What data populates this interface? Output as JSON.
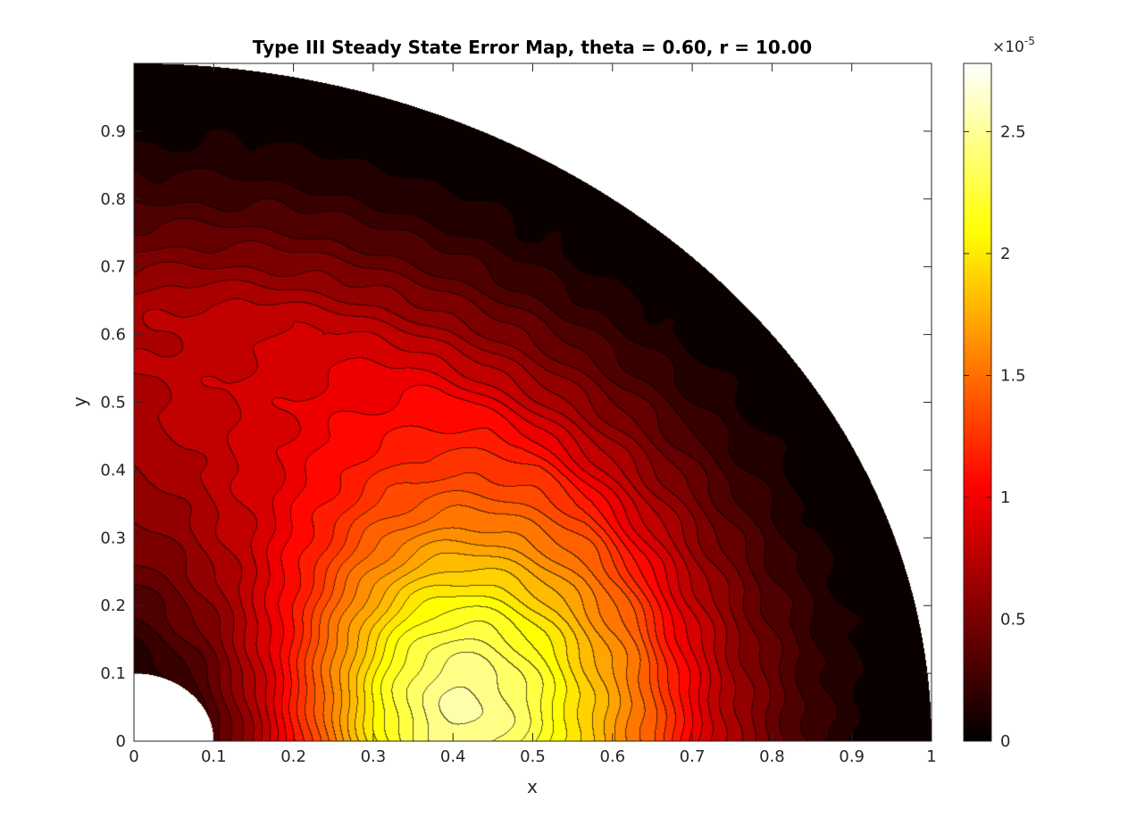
{
  "chart_data": {
    "type": "heatmap",
    "subtype": "filled-contour",
    "title": "Type III Steady State Error Map, theta = 0.60, r = 10.00",
    "xlabel": "x",
    "ylabel": "y",
    "xlim": [
      0,
      1
    ],
    "ylim": [
      0,
      1
    ],
    "x_ticks": [
      0,
      0.1,
      0.2,
      0.3,
      0.4,
      0.5,
      0.6,
      0.7,
      0.8,
      0.9,
      1
    ],
    "x_tick_labels": [
      "0",
      "0.1",
      "0.2",
      "0.3",
      "0.4",
      "0.5",
      "0.6",
      "0.7",
      "0.8",
      "0.9",
      "1"
    ],
    "y_ticks": [
      0,
      0.1,
      0.2,
      0.3,
      0.4,
      0.5,
      0.6,
      0.7,
      0.8,
      0.9
    ],
    "y_tick_labels": [
      "0",
      "0.1",
      "0.2",
      "0.3",
      "0.4",
      "0.5",
      "0.6",
      "0.7",
      "0.8",
      "0.9"
    ],
    "domain": "quarter annulus, inner radius 0.1, outer radius 1",
    "inner_radius": 0.1,
    "outer_radius": 1.0,
    "colormap": "hot",
    "contour_levels": 30,
    "colorbar": {
      "min": 0,
      "max": 2.78,
      "ticks": [
        0,
        0.5,
        1,
        1.5,
        2,
        2.5
      ],
      "tick_labels": [
        "0",
        "0.5",
        "1",
        "1.5",
        "2",
        "2.5"
      ],
      "exponent_base": "×10",
      "exponent_power": "-5"
    },
    "field_description": {
      "peak_location": [
        0.4,
        0.05
      ],
      "peak_value": 2.78,
      "value_at_outer_boundary": 0,
      "value_near_upper_left_inner_region": 1.2
    },
    "grid": false,
    "legend": "none"
  }
}
